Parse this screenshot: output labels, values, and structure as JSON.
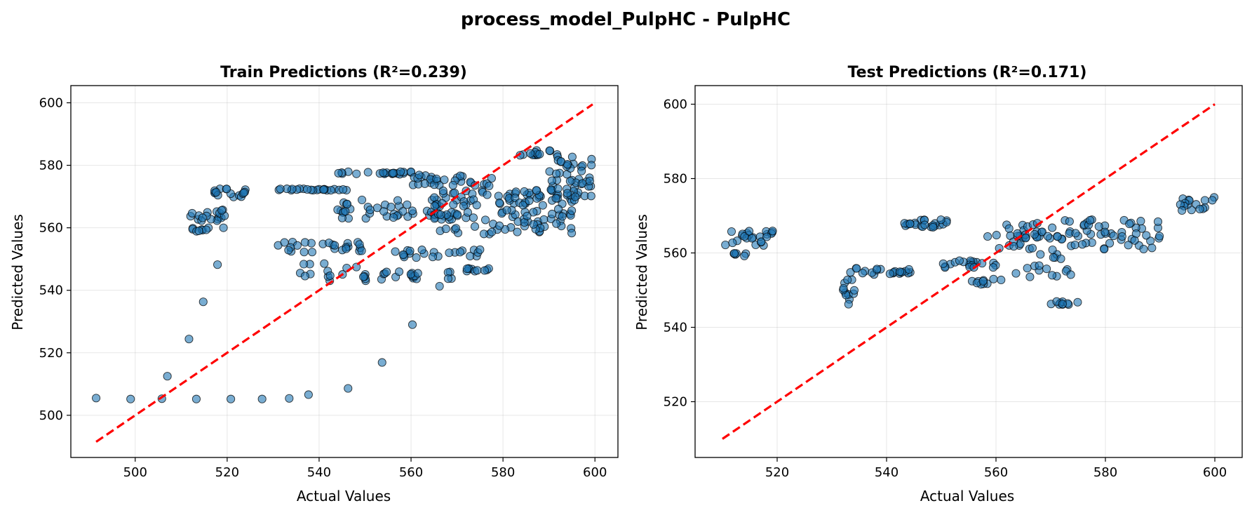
{
  "figure": {
    "suptitle": "process_model_PulpHC - PulpHC"
  },
  "chart_data": [
    {
      "type": "scatter",
      "title": "Train Predictions (R²=0.239)",
      "xlabel": "Actual Values",
      "ylabel": "Predicted Values",
      "xlim": [
        486,
        605
      ],
      "ylim": [
        486.5,
        605.5
      ],
      "xticks": [
        500,
        520,
        540,
        560,
        580,
        600
      ],
      "yticks": [
        500,
        520,
        540,
        560,
        580,
        600
      ],
      "grid": true,
      "point_color": "#1f77b4",
      "reference_line": {
        "color": "#ff0000",
        "style": "dashed",
        "x": [
          491.5,
          599.5
        ],
        "y": [
          491.5,
          599.5
        ]
      },
      "clusters": [
        {
          "x": [
            511.5,
            520.5
          ],
          "y": [
            562,
            566
          ],
          "count": 18
        },
        {
          "x": [
            512,
            516
          ],
          "y": [
            558.8,
            560
          ],
          "count": 8
        },
        {
          "x": [
            517,
            527
          ],
          "y": [
            569.5,
            572.5
          ],
          "count": 16
        },
        {
          "x": [
            530,
            546
          ],
          "y": [
            572,
            572.5
          ],
          "count": 22
        },
        {
          "x": [
            544,
            560
          ],
          "y": [
            577,
            578
          ],
          "count": 22
        },
        {
          "x": [
            531,
            550
          ],
          "y": [
            552,
            556
          ],
          "count": 26
        },
        {
          "x": [
            535,
            551
          ],
          "y": [
            543,
            549
          ],
          "count": 18
        },
        {
          "x": [
            544,
            566
          ],
          "y": [
            563,
            569
          ],
          "count": 40
        },
        {
          "x": [
            553,
            570
          ],
          "y": [
            543.5,
            546
          ],
          "count": 18
        },
        {
          "x": [
            555,
            575
          ],
          "y": [
            550,
            553
          ],
          "count": 22
        },
        {
          "x": [
            560,
            580
          ],
          "y": [
            573,
            577
          ],
          "count": 30
        },
        {
          "x": [
            565,
            595
          ],
          "y": [
            558,
            572
          ],
          "count": 130
        },
        {
          "x": [
            583,
            592
          ],
          "y": [
            583,
            585
          ],
          "count": 14
        },
        {
          "x": [
            590,
            599.5
          ],
          "y": [
            568,
            583
          ],
          "count": 50
        },
        {
          "x": [
            571,
            578
          ],
          "y": [
            546,
            547
          ],
          "count": 10
        }
      ],
      "points": [
        {
          "x": [
            491.5,
            499,
            505.8,
            513.3,
            520.8,
            527.6,
            533.5,
            537.7,
            546.3,
            553.7,
            560.3,
            566.2,
            507,
            511.7,
            514.8,
            517.9,
            519.2
          ],
          "y": [
            505.5,
            505.2,
            505.3,
            505.2,
            505.2,
            505.2,
            505.4,
            506.6,
            508.6,
            516.9,
            529,
            541.3,
            512.5,
            524.4,
            536.3,
            548.2,
            560
          ]
        }
      ]
    },
    {
      "type": "scatter",
      "title": "Test Predictions (R²=0.171)",
      "xlabel": "Actual Values",
      "ylabel": "Predicted Values",
      "xlim": [
        505,
        605
      ],
      "ylim": [
        505,
        605
      ],
      "xticks": [
        520,
        540,
        560,
        580,
        600
      ],
      "yticks": [
        520,
        540,
        560,
        580,
        600
      ],
      "grid": true,
      "point_color": "#1f77b4",
      "reference_line": {
        "color": "#ff0000",
        "style": "dashed",
        "x": [
          510,
          600
        ],
        "y": [
          510,
          600
        ]
      },
      "clusters": [
        {
          "x": [
            510,
            520
          ],
          "y": [
            562,
            566
          ],
          "count": 24
        },
        {
          "x": [
            512,
            515
          ],
          "y": [
            559,
            560
          ],
          "count": 6
        },
        {
          "x": [
            531.5,
            534.5
          ],
          "y": [
            546,
            553
          ],
          "count": 12
        },
        {
          "x": [
            533,
            545
          ],
          "y": [
            554,
            556
          ],
          "count": 22
        },
        {
          "x": [
            543,
            551
          ],
          "y": [
            566.5,
            569
          ],
          "count": 24
        },
        {
          "x": [
            550,
            560
          ],
          "y": [
            556,
            558
          ],
          "count": 20
        },
        {
          "x": [
            555,
            561
          ],
          "y": [
            551.5,
            553
          ],
          "count": 10
        },
        {
          "x": [
            558,
            567
          ],
          "y": [
            561,
            568
          ],
          "count": 22
        },
        {
          "x": [
            563,
            574
          ],
          "y": [
            553.5,
            566
          ],
          "count": 26
        },
        {
          "x": [
            567,
            590
          ],
          "y": [
            561,
            569
          ],
          "count": 60
        },
        {
          "x": [
            570,
            575
          ],
          "y": [
            546,
            547
          ],
          "count": 10
        },
        {
          "x": [
            593.5,
            600
          ],
          "y": [
            571,
            575
          ],
          "count": 16
        }
      ],
      "points": []
    }
  ]
}
